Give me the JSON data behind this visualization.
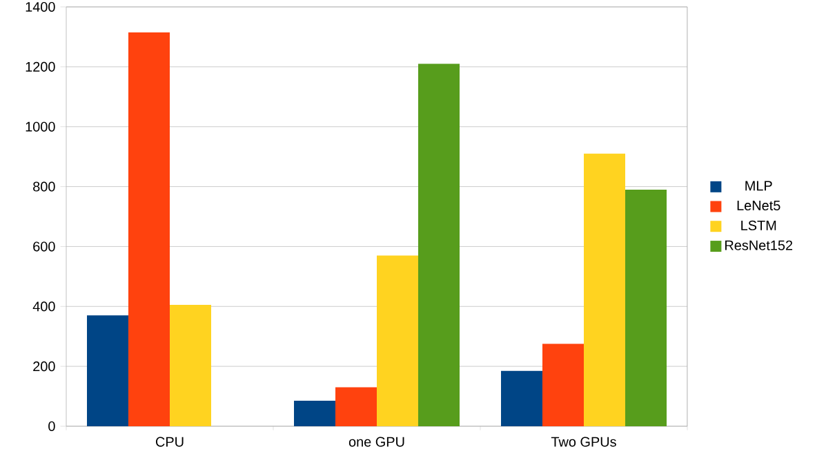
{
  "chart_data": {
    "type": "bar",
    "categories": [
      "CPU",
      "one GPU",
      "Two GPUs"
    ],
    "series": [
      {
        "name": "MLP",
        "color": "#004586",
        "values": [
          370,
          85,
          185
        ]
      },
      {
        "name": "LeNet5",
        "color": "#ff420e",
        "values": [
          1315,
          130,
          275
        ]
      },
      {
        "name": "LSTM",
        "color": "#ffd320",
        "values": [
          405,
          570,
          910
        ]
      },
      {
        "name": "ResNet152",
        "color": "#579d1c",
        "values": [
          null,
          1210,
          790
        ]
      }
    ],
    "ylim": [
      0,
      1400
    ],
    "yticks": [
      0,
      200,
      400,
      600,
      800,
      1000,
      1200,
      1400
    ],
    "grid": "y",
    "legend": "right"
  }
}
